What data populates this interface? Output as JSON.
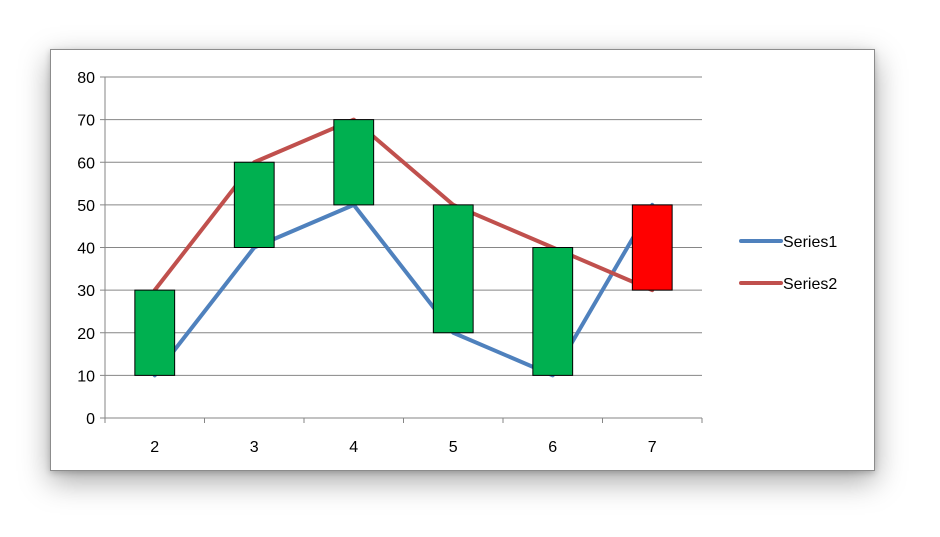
{
  "chart_data": {
    "type": "line",
    "title": "",
    "xlabel": "",
    "ylabel": "",
    "categories": [
      "2",
      "3",
      "4",
      "5",
      "6",
      "7"
    ],
    "ylim": [
      0,
      80
    ],
    "y_ticks": [
      0,
      10,
      20,
      30,
      40,
      50,
      60,
      70,
      80
    ],
    "grid": true,
    "legend_position": "right",
    "series": [
      {
        "name": "Series1",
        "values": [
          10,
          40,
          50,
          20,
          10,
          50
        ],
        "color": "#4f81bd"
      },
      {
        "name": "Series2",
        "values": [
          30,
          60,
          70,
          50,
          40,
          30
        ],
        "color": "#c0504d"
      }
    ],
    "up_down_bars": {
      "up_color": "#00b050",
      "down_color": "#ff0000",
      "border_color": "#000000"
    }
  }
}
